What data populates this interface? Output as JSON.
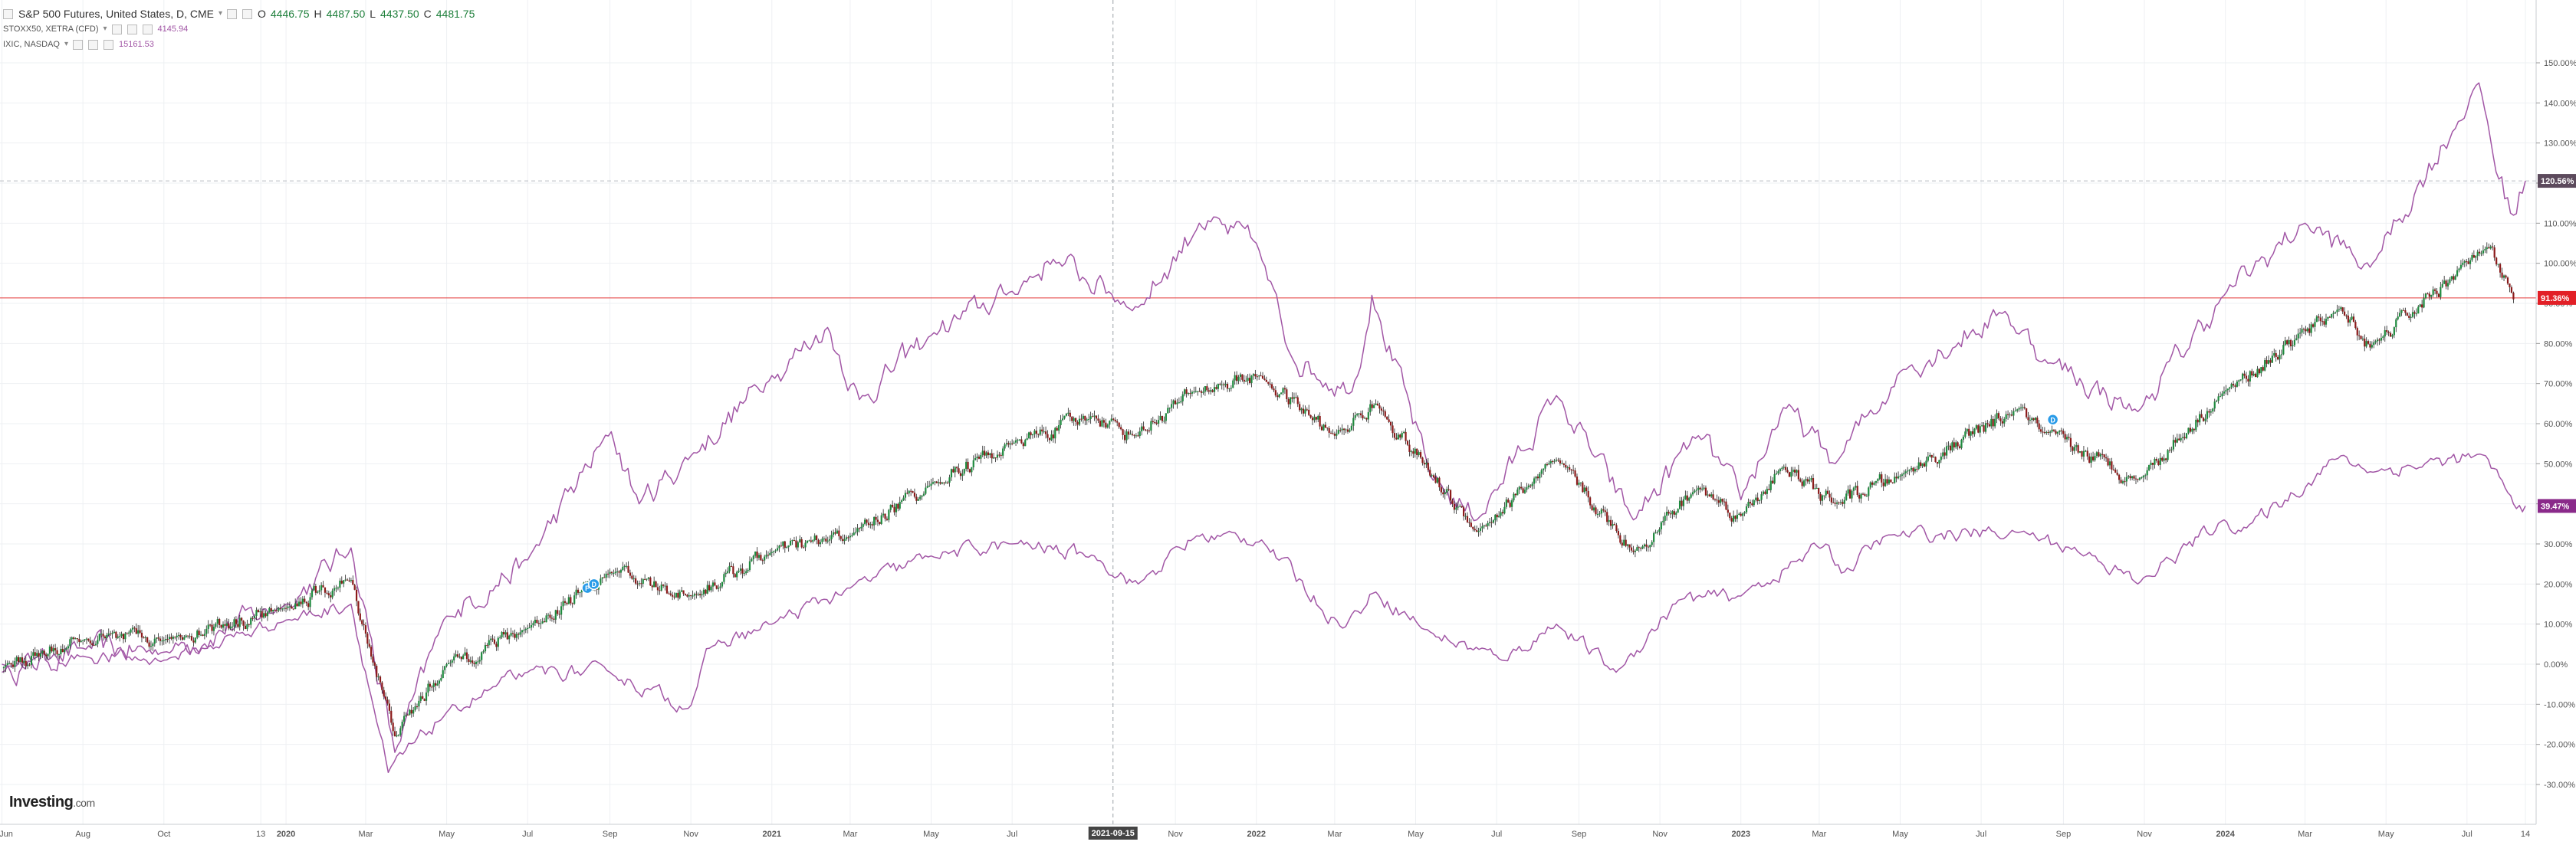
{
  "legend": {
    "main_title": "S&P 500 Futures, United States, D, CME",
    "ohlc": {
      "o_label": "O",
      "o": "4446.75",
      "h_label": "H",
      "h": "4487.50",
      "l_label": "L",
      "l": "4437.50",
      "c_label": "C",
      "c": "4481.75"
    },
    "overlays": [
      {
        "name": "STOXX50, XETRA (CFD)",
        "value": "4145.94"
      },
      {
        "name": "IXIC, NASDAQ",
        "value": "15161.53"
      }
    ]
  },
  "logo": {
    "brand": "Investing",
    "suffix": ".com"
  },
  "colors": {
    "candle_up": "#1e8a3e",
    "candle_down": "#8b1a1a",
    "overlay_line": "#a257a6",
    "h_line_red": "#e33a3a",
    "badge_ixic": "#5c4a5c",
    "badge_spx": "#e21f26",
    "badge_stoxx": "#8a2a8a",
    "grid": "#eef0f3",
    "axis_text": "#555555",
    "marker_blue": "#2a9be8"
  },
  "price_badges": [
    {
      "id": "ixic",
      "text": "120.56%",
      "value": 120.56
    },
    {
      "id": "spx",
      "text": "91.36%",
      "value": 91.36
    },
    {
      "id": "stoxx",
      "text": "39.47%",
      "value": 39.47
    }
  ],
  "crosshair_date_label": "2021-09-15",
  "chart_data": {
    "type": "line",
    "ylabel": "",
    "xlabel": "",
    "ylim": [
      -30,
      150
    ],
    "y_ticks": [
      -30,
      -20,
      -10,
      0,
      10,
      20,
      30,
      40,
      50,
      60,
      70,
      80,
      90,
      100,
      110,
      120,
      130,
      140,
      150
    ],
    "y_tick_labels": [
      "-30.00%",
      "-20.00%",
      "-10.00%",
      "0.00%",
      "10.00%",
      "20.00%",
      "30.00%",
      "40.00%",
      "50.00%",
      "60.00%",
      "70.00%",
      "80.00%",
      "90.00%",
      "100.00%",
      "110.00%",
      "120.00%",
      "130.00%",
      "140.00%",
      "150.00%"
    ],
    "x_tick_labels": [
      "Jun",
      "Aug",
      "Oct",
      "13",
      "2020",
      "Mar",
      "May",
      "Jul",
      "Sep",
      "Nov",
      "2021",
      "Mar",
      "May",
      "Jul",
      "2021-09-15",
      "Nov",
      "2022",
      "Mar",
      "May",
      "Jul",
      "Sep",
      "Nov",
      "2023",
      "Mar",
      "May",
      "Jul",
      "Sep",
      "Nov",
      "2024",
      "Mar",
      "May",
      "Jul",
      "14"
    ],
    "grid": true,
    "legend_placement": "top-left",
    "series": [
      {
        "name": "S&P 500 Futures, United States, D, CME",
        "render": "candles",
        "keypoints": [
          [
            "2019-06-01",
            -1
          ],
          [
            "2019-08-01",
            6
          ],
          [
            "2019-10-01",
            6
          ],
          [
            "2020-01-01",
            14
          ],
          [
            "2020-02-19",
            21
          ],
          [
            "2020-03-23",
            -18
          ],
          [
            "2020-05-01",
            0
          ],
          [
            "2020-07-01",
            9
          ],
          [
            "2020-09-01",
            23
          ],
          [
            "2020-11-01",
            17
          ],
          [
            "2021-01-01",
            28
          ],
          [
            "2021-03-01",
            32
          ],
          [
            "2021-05-01",
            45
          ],
          [
            "2021-07-01",
            55
          ],
          [
            "2021-09-01",
            62
          ],
          [
            "2021-10-01",
            57
          ],
          [
            "2021-11-15",
            68
          ],
          [
            "2022-01-03",
            72
          ],
          [
            "2022-03-01",
            57
          ],
          [
            "2022-04-01",
            65
          ],
          [
            "2022-06-16",
            33
          ],
          [
            "2022-08-15",
            51
          ],
          [
            "2022-10-12",
            28
          ],
          [
            "2022-11-30",
            44
          ],
          [
            "2023-01-01",
            37
          ],
          [
            "2023-02-01",
            49
          ],
          [
            "2023-03-13",
            40
          ],
          [
            "2023-05-01",
            47
          ],
          [
            "2023-07-31",
            64
          ],
          [
            "2023-08-15",
            58
          ],
          [
            "2023-10-27",
            46
          ],
          [
            "2023-12-31",
            68
          ],
          [
            "2024-03-28",
            89
          ],
          [
            "2024-04-19",
            79
          ],
          [
            "2024-07-16",
            104
          ],
          [
            "2024-08-05",
            91
          ]
        ]
      },
      {
        "name": "IXIC, NASDAQ",
        "render": "line",
        "keypoints": [
          [
            "2019-06-01",
            -2
          ],
          [
            "2019-08-01",
            4
          ],
          [
            "2019-10-01",
            3
          ],
          [
            "2020-01-01",
            15
          ],
          [
            "2020-02-19",
            29
          ],
          [
            "2020-03-23",
            -22
          ],
          [
            "2020-05-01",
            12
          ],
          [
            "2020-07-01",
            26
          ],
          [
            "2020-09-02",
            58
          ],
          [
            "2020-09-23",
            40
          ],
          [
            "2020-11-01",
            52
          ],
          [
            "2021-01-01",
            72
          ],
          [
            "2021-02-12",
            84
          ],
          [
            "2021-03-08",
            66
          ],
          [
            "2021-05-01",
            82
          ],
          [
            "2021-07-01",
            93
          ],
          [
            "2021-08-01",
            101
          ],
          [
            "2021-10-04",
            89
          ],
          [
            "2021-11-19",
            110
          ],
          [
            "2022-01-01",
            105
          ],
          [
            "2022-01-27",
            77
          ],
          [
            "2022-03-14",
            68
          ],
          [
            "2022-03-29",
            92
          ],
          [
            "2022-05-12",
            47
          ],
          [
            "2022-06-16",
            36
          ],
          [
            "2022-08-15",
            67
          ],
          [
            "2022-10-12",
            36
          ],
          [
            "2022-11-30",
            57
          ],
          [
            "2023-01-01",
            41
          ],
          [
            "2023-02-02",
            64
          ],
          [
            "2023-03-13",
            50
          ],
          [
            "2023-05-01",
            73
          ],
          [
            "2023-07-19",
            88
          ],
          [
            "2023-08-18",
            76
          ],
          [
            "2023-10-27",
            63
          ],
          [
            "2023-12-31",
            92
          ],
          [
            "2024-03-01",
            110
          ],
          [
            "2024-04-19",
            99
          ],
          [
            "2024-07-10",
            145
          ],
          [
            "2024-07-25",
            121
          ],
          [
            "2024-08-05",
            112
          ],
          [
            "2024-08-14",
            120.56
          ]
        ]
      },
      {
        "name": "STOXX50, XETRA (CFD)",
        "render": "line",
        "keypoints": [
          [
            "2019-06-01",
            0
          ],
          [
            "2019-08-01",
            2
          ],
          [
            "2019-10-01",
            1
          ],
          [
            "2020-01-01",
            11
          ],
          [
            "2020-02-19",
            15
          ],
          [
            "2020-03-18",
            -27
          ],
          [
            "2020-05-01",
            -12
          ],
          [
            "2020-07-01",
            -2
          ],
          [
            "2020-09-01",
            -2
          ],
          [
            "2020-10-30",
            -11
          ],
          [
            "2020-11-15",
            4
          ],
          [
            "2021-01-01",
            10
          ],
          [
            "2021-03-01",
            19
          ],
          [
            "2021-05-01",
            27
          ],
          [
            "2021-07-01",
            30
          ],
          [
            "2021-09-01",
            27
          ],
          [
            "2021-10-04",
            20
          ],
          [
            "2021-11-17",
            32
          ],
          [
            "2022-01-05",
            31
          ],
          [
            "2022-03-07",
            9
          ],
          [
            "2022-04-01",
            18
          ],
          [
            "2022-05-12",
            8
          ],
          [
            "2022-07-05",
            1
          ],
          [
            "2022-08-15",
            10
          ],
          [
            "2022-09-29",
            -2
          ],
          [
            "2022-11-15",
            16
          ],
          [
            "2023-01-01",
            17
          ],
          [
            "2023-03-06",
            30
          ],
          [
            "2023-03-20",
            23
          ],
          [
            "2023-04-20",
            32
          ],
          [
            "2023-07-31",
            33
          ],
          [
            "2023-09-25",
            27
          ],
          [
            "2023-10-27",
            20
          ],
          [
            "2023-12-31",
            36
          ],
          [
            "2024-01-17",
            34
          ],
          [
            "2024-03-28",
            52
          ],
          [
            "2024-04-19",
            48
          ],
          [
            "2024-07-15",
            52
          ],
          [
            "2024-08-05",
            40
          ],
          [
            "2024-08-14",
            39.47
          ]
        ]
      }
    ],
    "h_lines": [
      {
        "value": 91.36,
        "style": "solid-red"
      },
      {
        "value": 120.56,
        "style": "dashed-gray"
      }
    ],
    "crosshair_x": "2021-09-15",
    "event_markers": [
      {
        "date": "2020-08-15",
        "value": 19,
        "label": "P"
      },
      {
        "date": "2020-08-20",
        "value": 20,
        "label": "D"
      },
      {
        "date": "2023-08-24",
        "value": 61,
        "label": "D"
      }
    ]
  }
}
